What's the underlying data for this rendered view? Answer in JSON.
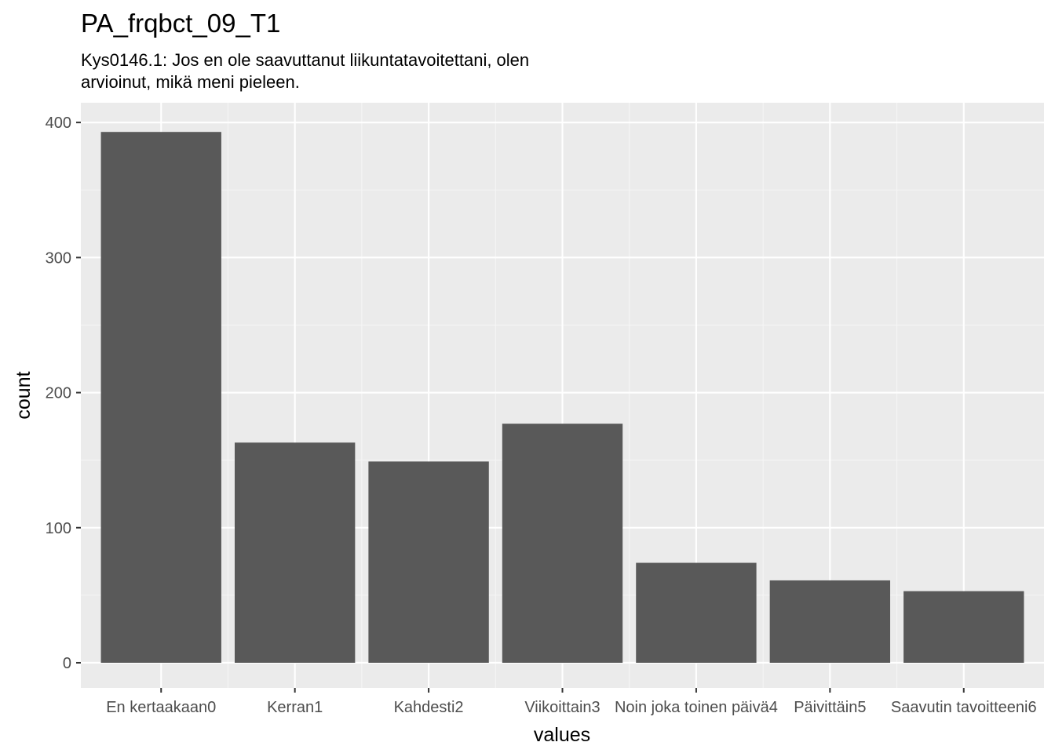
{
  "chart_data": {
    "type": "bar",
    "title": "PA_frqbct_09_T1",
    "subtitle_lines": [
      "Kys0146.1: Jos en ole saavuttanut liikuntatavoitettani, olen",
      "arvioinut, mikä meni pieleen."
    ],
    "xlabel": "values",
    "ylabel": "count",
    "categories": [
      "En kertaakaan0",
      "Kerran1",
      "Kahdesti2",
      "Viikoittain3",
      "Noin joka toinen päivä4",
      "Päivittäin5",
      "Saavutin tavoitteeni6"
    ],
    "values": [
      393,
      163,
      149,
      177,
      74,
      61,
      53
    ],
    "ylim": [
      -18.6,
      414.6
    ],
    "yticks": [
      0,
      100,
      200,
      300,
      400
    ],
    "ytick_labels": [
      "0",
      "100",
      "200",
      "300",
      "400"
    ],
    "grid": true,
    "legend": "none",
    "colors": {
      "panel_background": "#ebebeb",
      "grid_major": "#ffffff",
      "grid_minor": "#f5f5f5",
      "bar_fill": "#595959",
      "tick_label": "#4d4d4d",
      "tick_mark": "#333333",
      "text": "#000000"
    }
  }
}
